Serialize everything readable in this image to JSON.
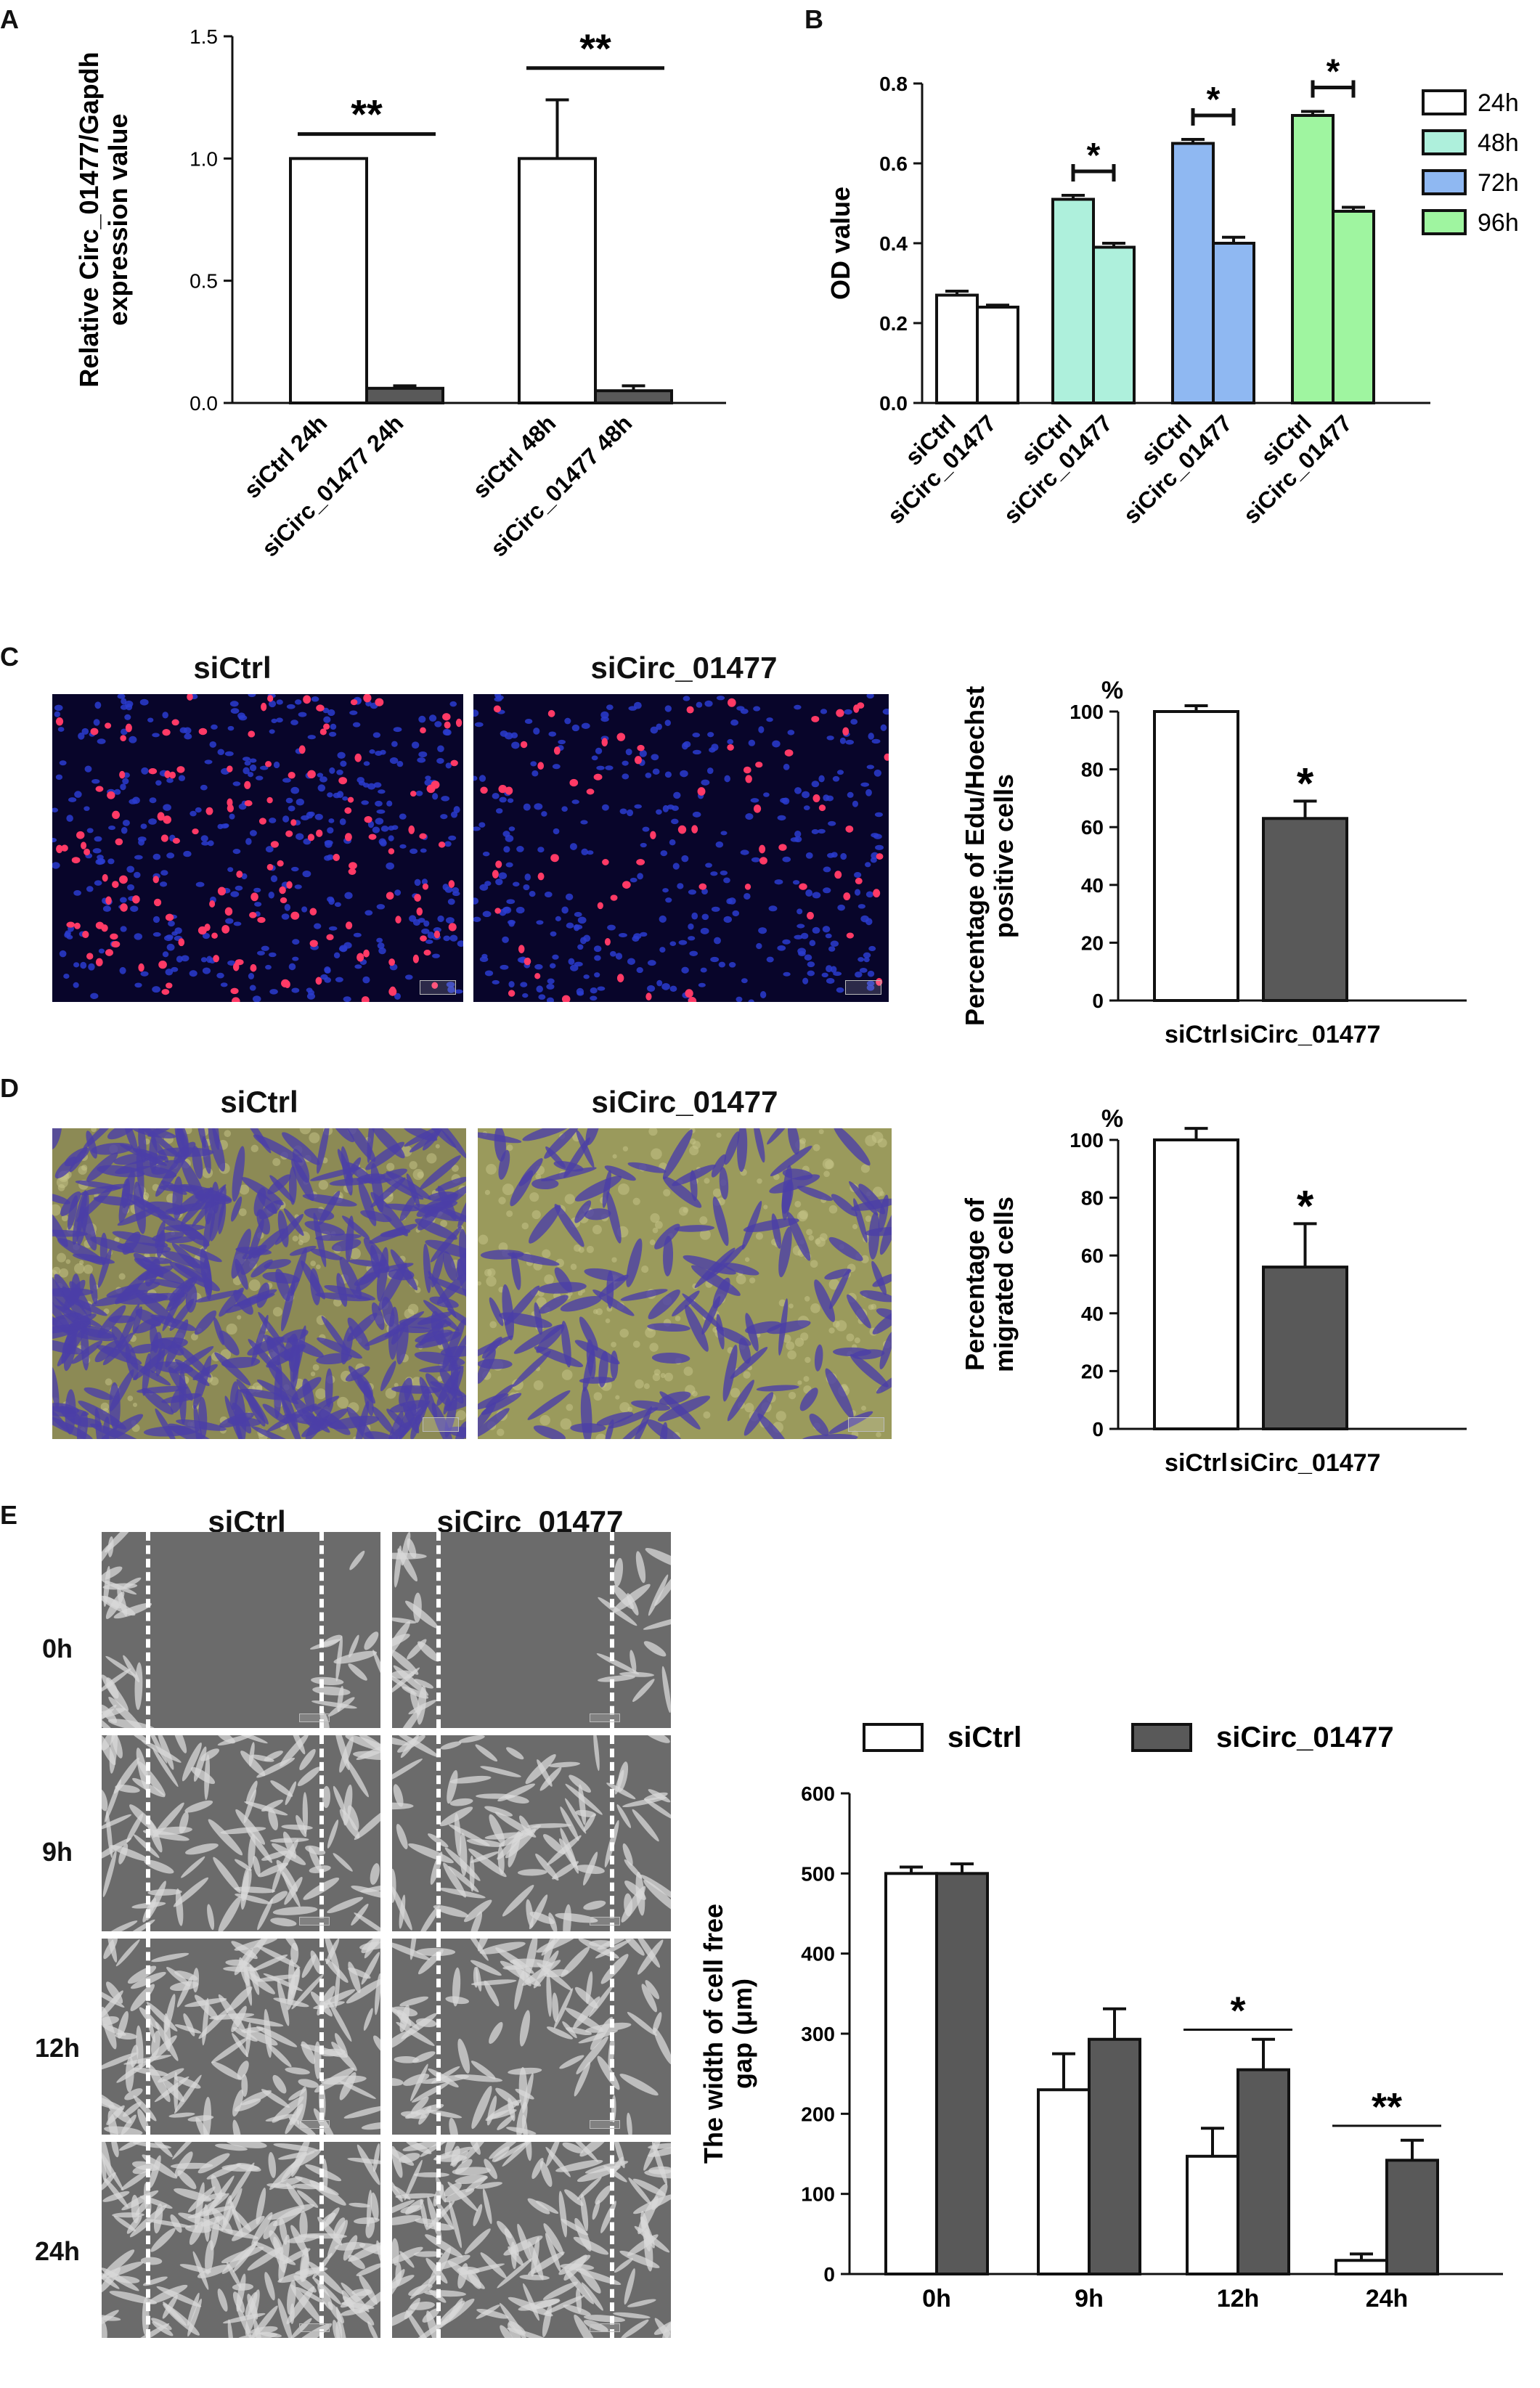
{
  "panels": {
    "A": "A",
    "B": "B",
    "C": "C",
    "D": "D",
    "E": "E"
  },
  "colors": {
    "white": "#ffffff",
    "dark": "#595959",
    "h24": "#ffffff",
    "h48": "#aef0dc",
    "h72": "#8fb8f2",
    "h96": "#9ff5a0"
  },
  "chart_data": [
    {
      "id": "A",
      "type": "bar",
      "categories": [
        "siCtrl 24h",
        "siCirc_01477 24h",
        "siCtrl 48h",
        "siCirc_01477 48h"
      ],
      "values": [
        1.0,
        0.06,
        1.0,
        0.05
      ],
      "errors": [
        0.0,
        0.01,
        0.24,
        0.02
      ],
      "bar_colors": [
        "#ffffff",
        "#595959",
        "#ffffff",
        "#595959"
      ],
      "ylabel_lines": [
        "Relative Circ_01477/Gapdh",
        "expression value"
      ],
      "ylim": [
        0,
        1.5
      ],
      "yticks": [
        0.0,
        0.5,
        1.0,
        1.5
      ],
      "ytick_labels": [
        "0.0",
        "0.5",
        "1.0",
        "1.5"
      ],
      "significance": [
        {
          "label": "**",
          "from": 0,
          "to": 1,
          "y": 1.1
        },
        {
          "label": "**",
          "from": 2,
          "to": 3,
          "y": 1.37
        }
      ]
    },
    {
      "id": "B",
      "type": "bar",
      "categories": [
        "siCtrl",
        "siCirc_01477",
        "siCtrl",
        "siCirc_01477",
        "siCtrl",
        "siCirc_01477",
        "siCtrl",
        "siCirc_01477"
      ],
      "groups": [
        "24h",
        "48h",
        "72h",
        "96h"
      ],
      "values": [
        0.27,
        0.24,
        0.51,
        0.39,
        0.65,
        0.4,
        0.72,
        0.48
      ],
      "errors": [
        0.01,
        0.005,
        0.01,
        0.01,
        0.01,
        0.015,
        0.01,
        0.01
      ],
      "ylabel_lines": [
        "OD value"
      ],
      "ylim": [
        0,
        0.8
      ],
      "yticks": [
        0.0,
        0.2,
        0.4,
        0.6,
        0.8
      ],
      "ytick_labels": [
        "0.0",
        "0.2",
        "0.4",
        "0.6",
        "0.8"
      ],
      "legend": [
        "24h",
        "48h",
        "72h",
        "96h"
      ],
      "legend_position": "top-right",
      "significance": [
        {
          "label": "*",
          "from": 2,
          "to": 3,
          "y": 0.58
        },
        {
          "label": "*",
          "from": 4,
          "to": 5,
          "y": 0.72
        },
        {
          "label": "*",
          "from": 6,
          "to": 7,
          "y": 0.79
        }
      ]
    },
    {
      "id": "C",
      "type": "bar",
      "categories": [
        "siCtrl",
        "siCirc_01477"
      ],
      "values": [
        100,
        63
      ],
      "errors": [
        2,
        6
      ],
      "bar_colors": [
        "#ffffff",
        "#595959"
      ],
      "ylabel_lines": [
        "Percentage of Edu/Hoechst",
        "positive cells"
      ],
      "unit": "%",
      "ylim": [
        0,
        100
      ],
      "yticks": [
        0,
        20,
        40,
        60,
        80,
        100
      ],
      "ytick_labels": [
        "0",
        "20",
        "40",
        "60",
        "80",
        "100"
      ],
      "significance": [
        {
          "label": "*",
          "over": 1
        }
      ]
    },
    {
      "id": "D",
      "type": "bar",
      "categories": [
        "siCtrl",
        "siCirc_01477"
      ],
      "values": [
        100,
        56
      ],
      "errors": [
        4,
        15
      ],
      "bar_colors": [
        "#ffffff",
        "#595959"
      ],
      "ylabel_lines": [
        "Percentage of",
        "migrated cells"
      ],
      "unit": "%",
      "ylim": [
        0,
        100
      ],
      "yticks": [
        0,
        20,
        40,
        60,
        80,
        100
      ],
      "ytick_labels": [
        "0",
        "20",
        "40",
        "60",
        "80",
        "100"
      ],
      "significance": [
        {
          "label": "*",
          "over": 1
        }
      ]
    },
    {
      "id": "E",
      "type": "bar",
      "categories": [
        "0h",
        "9h",
        "12h",
        "24h"
      ],
      "series": [
        {
          "name": "siCtrl",
          "values": [
            500,
            230,
            147,
            17
          ],
          "errors": [
            8,
            45,
            35,
            8
          ],
          "color": "#ffffff"
        },
        {
          "name": "siCirc_01477",
          "values": [
            500,
            293,
            255,
            142
          ],
          "errors": [
            12,
            38,
            38,
            25
          ],
          "color": "#595959"
        }
      ],
      "ylabel_lines": [
        "The width of cell free",
        "gap (μm)"
      ],
      "ylim": [
        0,
        600
      ],
      "yticks": [
        0,
        100,
        200,
        300,
        400,
        500,
        600
      ],
      "ytick_labels": [
        "0",
        "100",
        "200",
        "300",
        "400",
        "500",
        "600"
      ],
      "legend_position": "top",
      "significance": [
        {
          "label": "*",
          "group": 2,
          "y": 305
        },
        {
          "label": "**",
          "group": 3,
          "y": 185
        }
      ]
    }
  ],
  "micrographs": {
    "c_titles": [
      "siCtrl",
      "siCirc_01477"
    ],
    "d_titles": [
      "siCtrl",
      "siCirc_01477"
    ],
    "e_titles": [
      "siCtrl",
      "siCirc_01477"
    ],
    "e_rows": [
      "0h",
      "9h",
      "12h",
      "24h"
    ]
  }
}
